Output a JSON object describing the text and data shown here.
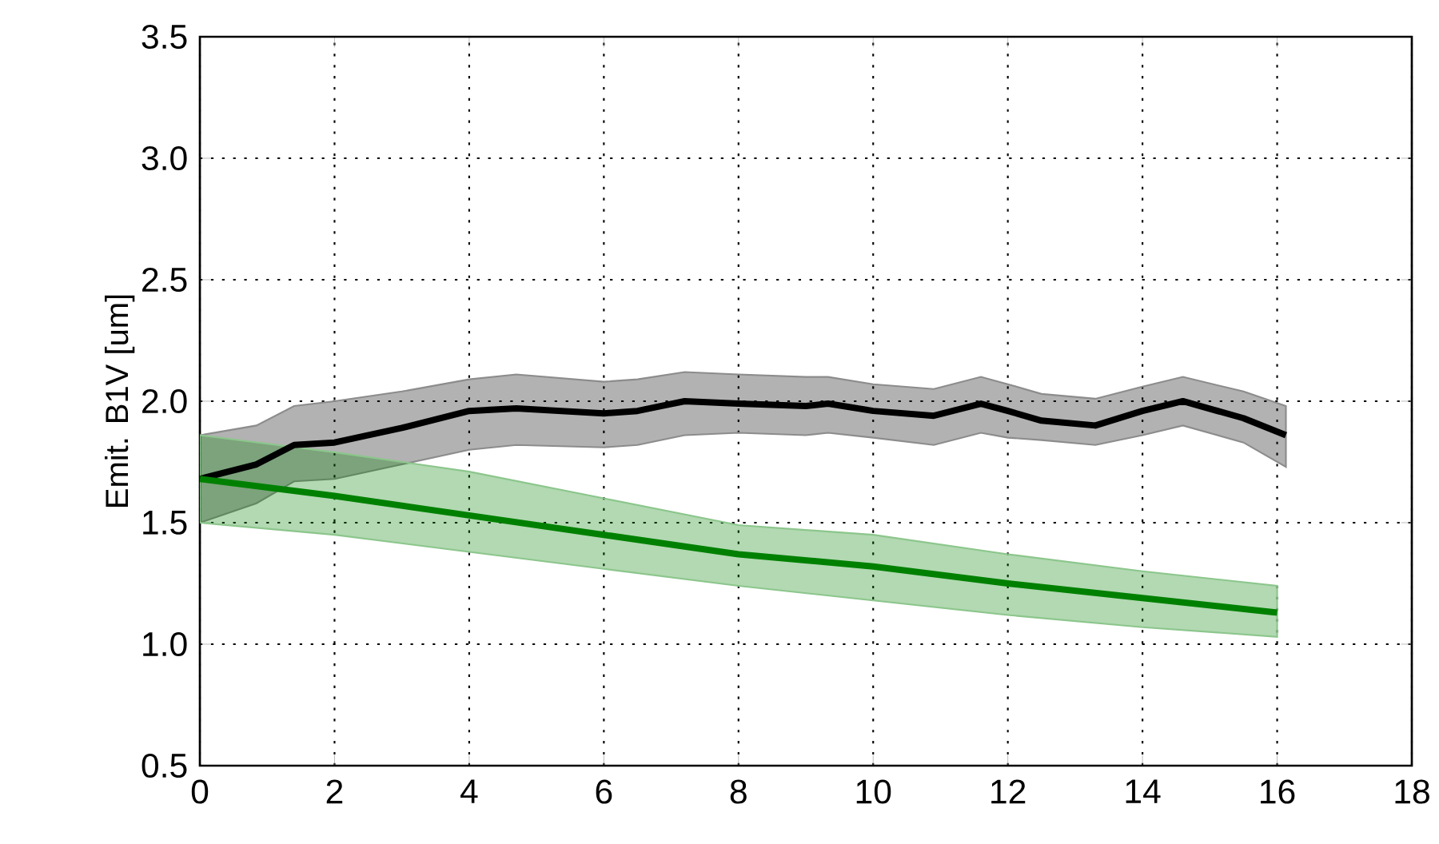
{
  "chart_data": {
    "type": "line",
    "ylabel": "Emit. B1V [um]",
    "xlim": [
      0,
      18
    ],
    "ylim": [
      0.5,
      3.5
    ],
    "xticks": [
      0,
      2,
      4,
      6,
      8,
      10,
      12,
      14,
      16,
      18
    ],
    "yticks": [
      {
        "value": 0.5,
        "label": "0.5"
      },
      {
        "value": 1.0,
        "label": "1.0"
      },
      {
        "value": 1.5,
        "label": "1.5"
      },
      {
        "value": 2.0,
        "label": "2.0"
      },
      {
        "value": 2.5,
        "label": "2.5"
      },
      {
        "value": 3.0,
        "label": "3.0"
      },
      {
        "value": 3.5,
        "label": "3.5"
      }
    ],
    "grid": true,
    "marker": "none",
    "line_style": "solid",
    "series": [
      {
        "color": "#000000",
        "x": [
          0,
          0.84,
          1.4,
          2,
          3,
          4,
          4.7,
          6,
          6.5,
          7.2,
          8,
          9,
          9.33,
          10,
          10.9,
          11.6,
          12,
          12.5,
          13.3,
          14,
          14.6,
          15.5,
          16.13
        ],
        "values": [
          1.68,
          1.74,
          1.82,
          1.83,
          1.89,
          1.96,
          1.97,
          1.95,
          1.96,
          2.0,
          1.99,
          1.98,
          1.99,
          1.96,
          1.94,
          1.99,
          1.96,
          1.92,
          1.9,
          1.96,
          2.0,
          1.93,
          1.86
        ],
        "lower": [
          1.5,
          1.58,
          1.67,
          1.68,
          1.74,
          1.8,
          1.82,
          1.81,
          1.82,
          1.86,
          1.87,
          1.86,
          1.87,
          1.85,
          1.82,
          1.87,
          1.85,
          1.84,
          1.82,
          1.86,
          1.9,
          1.83,
          1.73
        ],
        "upper": [
          1.86,
          1.9,
          1.98,
          2.0,
          2.04,
          2.09,
          2.11,
          2.08,
          2.09,
          2.12,
          2.11,
          2.1,
          2.1,
          2.07,
          2.05,
          2.1,
          2.07,
          2.03,
          2.01,
          2.06,
          2.1,
          2.04,
          1.98
        ]
      },
      {
        "color": "#008000",
        "x": [
          0,
          2,
          4,
          6,
          8,
          10,
          12,
          14,
          16
        ],
        "values": [
          1.68,
          1.61,
          1.53,
          1.45,
          1.37,
          1.32,
          1.25,
          1.19,
          1.13
        ],
        "lower": [
          1.5,
          1.45,
          1.38,
          1.31,
          1.24,
          1.18,
          1.12,
          1.07,
          1.03
        ],
        "upper": [
          1.86,
          1.79,
          1.71,
          1.6,
          1.49,
          1.45,
          1.37,
          1.3,
          1.24
        ]
      }
    ]
  }
}
